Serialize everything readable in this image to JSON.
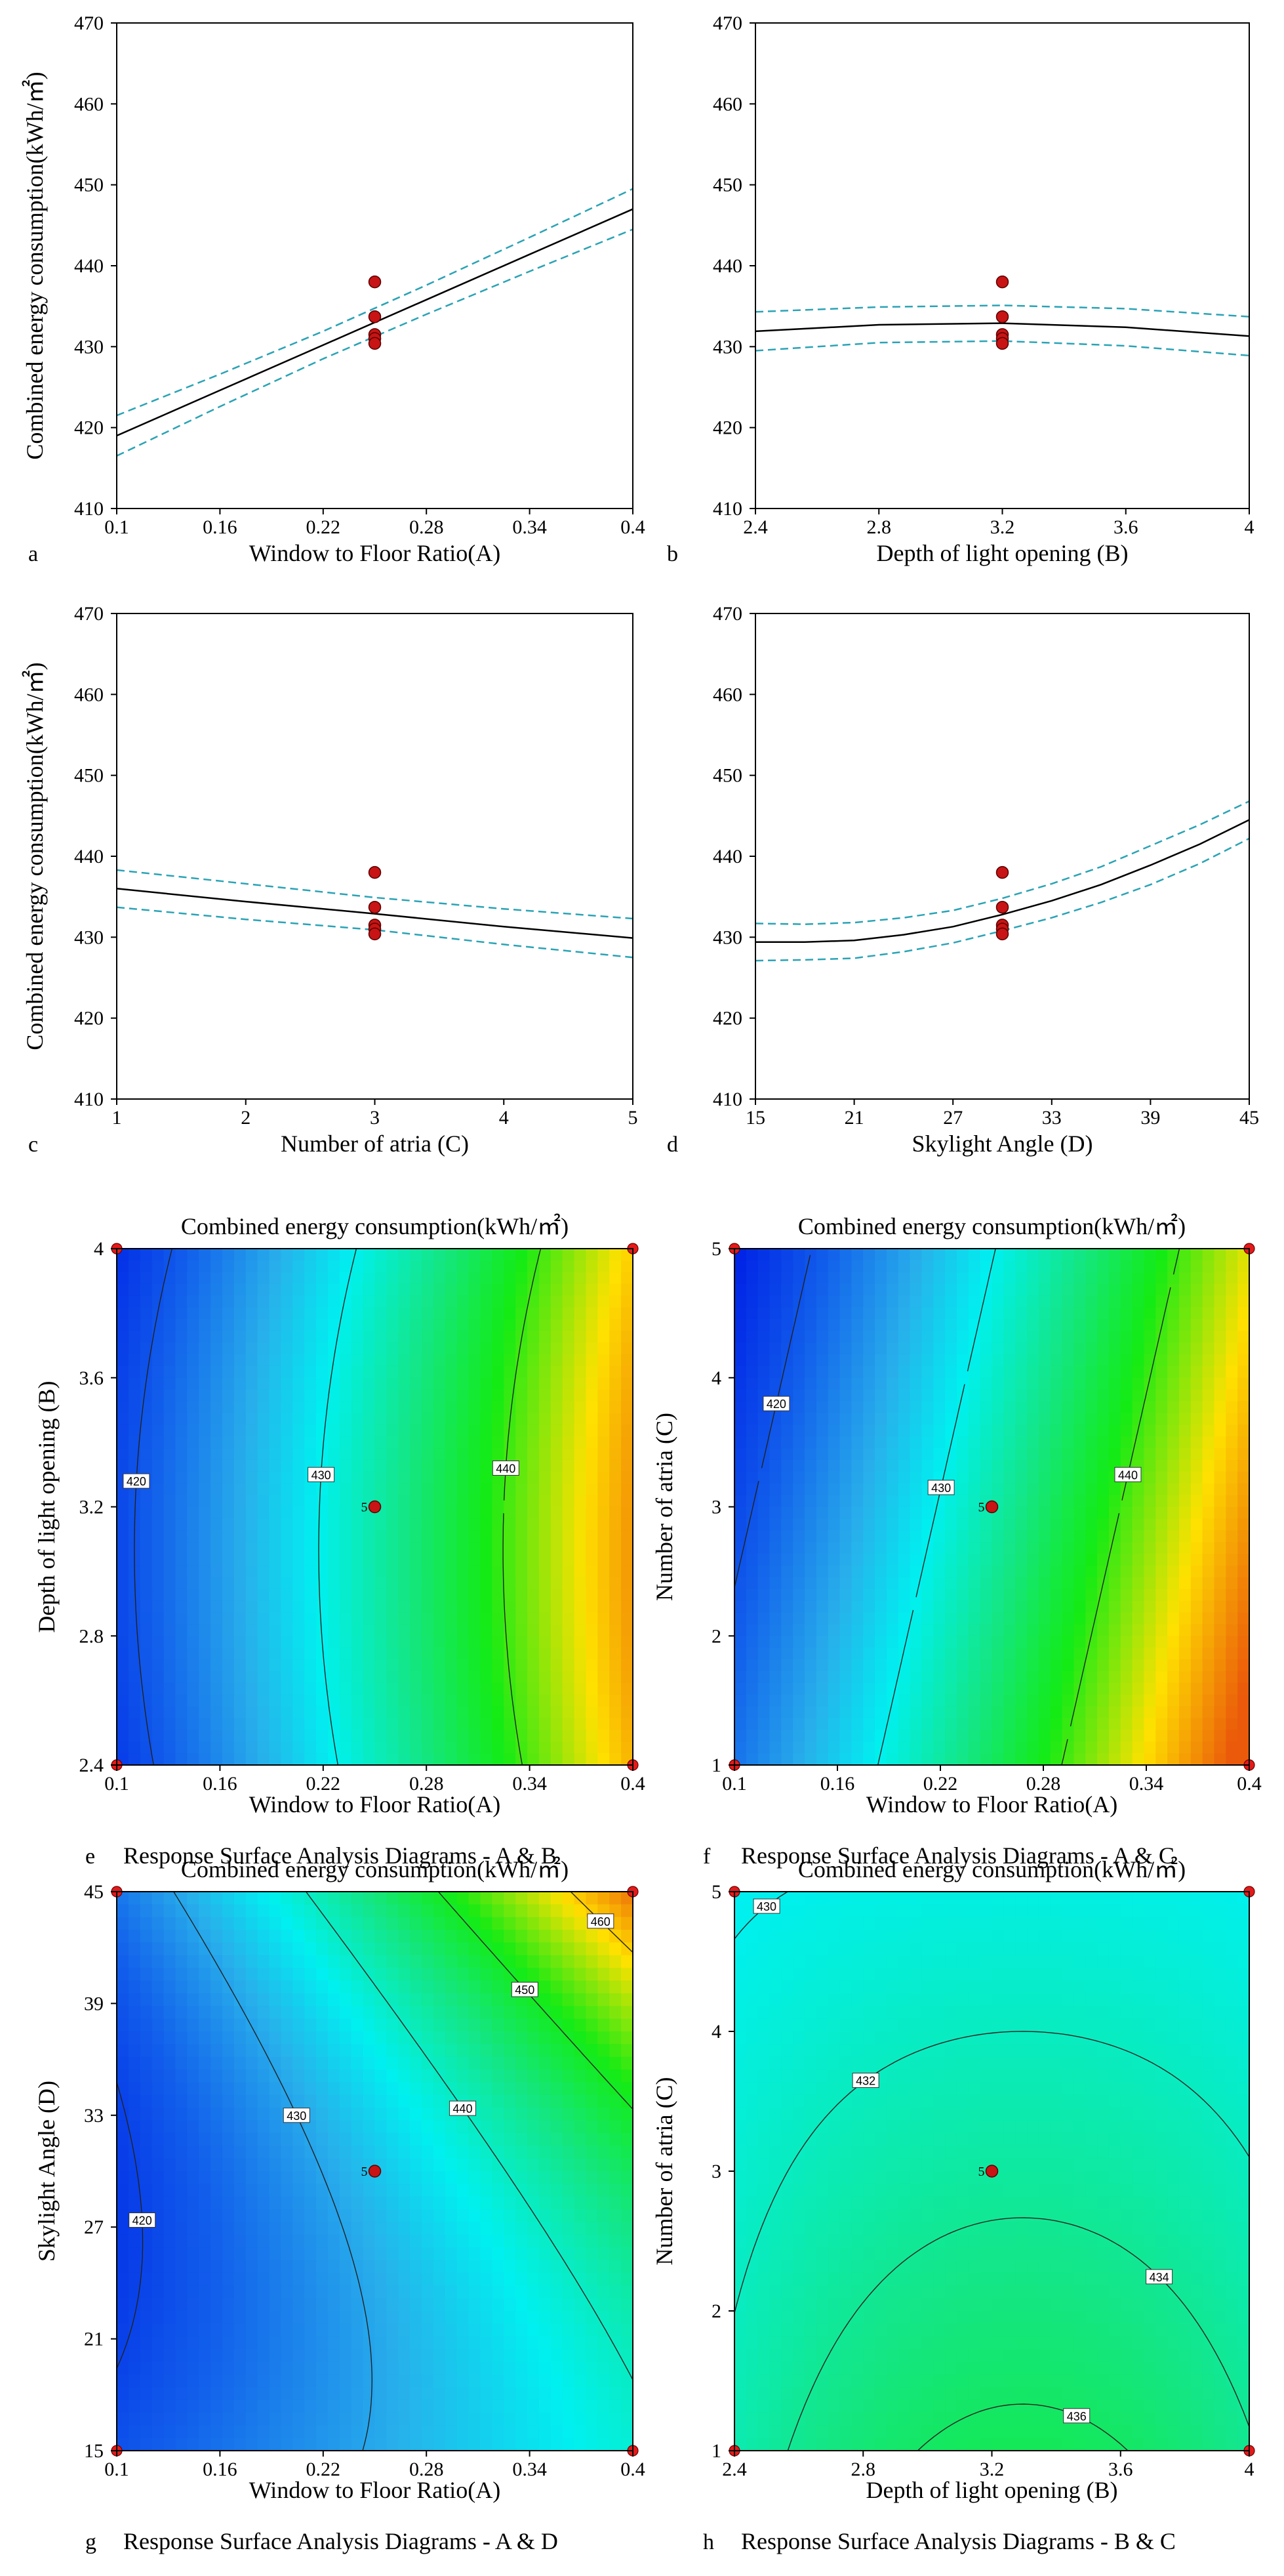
{
  "chart_data": [
    {
      "type": "line",
      "panel_letter": "a",
      "xlabel": "Window to Floor Ratio(A)",
      "ylabel": "Combined energy consumption(kWh/㎡)",
      "xlim": [
        0.1,
        0.4
      ],
      "ylim": [
        410,
        470
      ],
      "xticks": [
        "0.1",
        "0.16",
        "0.22",
        "0.28",
        "0.34",
        "0.4"
      ],
      "yticks": [
        "410",
        "420",
        "430",
        "440",
        "450",
        "460",
        "470"
      ],
      "series": [
        {
          "name": "prediction",
          "x": [
            0.1,
            0.16,
            0.22,
            0.28,
            0.34,
            0.4
          ],
          "y": [
            419,
            424.6,
            430.2,
            435.8,
            441.4,
            447
          ],
          "color": "#000000"
        },
        {
          "name": "upper CI",
          "x": [
            0.1,
            0.16,
            0.22,
            0.28,
            0.34,
            0.4
          ],
          "y": [
            421.5,
            426.6,
            431.9,
            437.6,
            443.5,
            449.5
          ],
          "color": "#2aa3b5"
        },
        {
          "name": "lower CI",
          "x": [
            0.1,
            0.16,
            0.22,
            0.28,
            0.34,
            0.4
          ],
          "y": [
            416.5,
            422.6,
            428.5,
            434,
            439.3,
            444.5
          ],
          "color": "#2aa3b5"
        }
      ],
      "points": {
        "x": [
          0.25,
          0.25,
          0.25,
          0.25,
          0.25
        ],
        "y": [
          438,
          433.7,
          431.5,
          431,
          430.4
        ]
      }
    },
    {
      "type": "line",
      "panel_letter": "b",
      "xlabel": "Depth of light opening (B)",
      "ylabel": "",
      "xlim": [
        2.4,
        4
      ],
      "ylim": [
        410,
        470
      ],
      "xticks": [
        "2.4",
        "2.8",
        "3.2",
        "3.6",
        "4"
      ],
      "yticks": [
        "410",
        "420",
        "430",
        "440",
        "450",
        "460",
        "470"
      ],
      "series": [
        {
          "name": "prediction",
          "x": [
            2.4,
            2.8,
            3.2,
            3.6,
            4
          ],
          "y": [
            431.9,
            432.7,
            432.9,
            432.4,
            431.3
          ],
          "color": "#000000"
        },
        {
          "name": "upper CI",
          "x": [
            2.4,
            2.8,
            3.2,
            3.6,
            4
          ],
          "y": [
            434.3,
            434.9,
            435.1,
            434.7,
            433.7
          ],
          "color": "#2aa3b5"
        },
        {
          "name": "lower CI",
          "x": [
            2.4,
            2.8,
            3.2,
            3.6,
            4
          ],
          "y": [
            429.5,
            430.5,
            430.7,
            430.1,
            428.9
          ],
          "color": "#2aa3b5"
        }
      ],
      "points": {
        "x": [
          3.2,
          3.2,
          3.2,
          3.2,
          3.2
        ],
        "y": [
          438,
          433.7,
          431.5,
          431,
          430.4
        ]
      }
    },
    {
      "type": "line",
      "panel_letter": "c",
      "xlabel": "Number of atria (C)",
      "ylabel": "Combined energy consumption(kWh/㎡)",
      "xlim": [
        1,
        5
      ],
      "ylim": [
        410,
        470
      ],
      "xticks": [
        "1",
        "2",
        "3",
        "4",
        "5"
      ],
      "yticks": [
        "410",
        "420",
        "430",
        "440",
        "450",
        "460",
        "470"
      ],
      "series": [
        {
          "name": "prediction",
          "x": [
            1,
            2,
            3,
            4,
            5
          ],
          "y": [
            436,
            434.4,
            432.9,
            431.3,
            429.9
          ],
          "color": "#000000"
        },
        {
          "name": "upper CI",
          "x": [
            1,
            2,
            3,
            4,
            5
          ],
          "y": [
            438.3,
            436.6,
            434.9,
            433.5,
            432.3
          ],
          "color": "#2aa3b5"
        },
        {
          "name": "lower CI",
          "x": [
            1,
            2,
            3,
            4,
            5
          ],
          "y": [
            433.7,
            432.2,
            430.9,
            429.1,
            427.5
          ],
          "color": "#2aa3b5"
        }
      ],
      "points": {
        "x": [
          3,
          3,
          3,
          3,
          3
        ],
        "y": [
          438,
          433.7,
          431.5,
          431,
          430.4
        ]
      }
    },
    {
      "type": "line",
      "panel_letter": "d",
      "xlabel": "Skylight Angle (D)",
      "ylabel": "",
      "xlim": [
        15,
        45
      ],
      "ylim": [
        410,
        470
      ],
      "xticks": [
        "15",
        "21",
        "27",
        "33",
        "39",
        "45"
      ],
      "yticks": [
        "410",
        "420",
        "430",
        "440",
        "450",
        "460",
        "470"
      ],
      "series": [
        {
          "name": "prediction",
          "x": [
            15,
            18,
            21,
            24,
            27,
            30,
            33,
            36,
            39,
            42,
            45
          ],
          "y": [
            429.4,
            429.4,
            429.6,
            430.3,
            431.3,
            432.8,
            434.5,
            436.5,
            438.9,
            441.5,
            444.5
          ],
          "color": "#000000"
        },
        {
          "name": "upper CI",
          "x": [
            15,
            18,
            21,
            24,
            27,
            30,
            33,
            36,
            39,
            42,
            45
          ],
          "y": [
            431.7,
            431.6,
            431.8,
            432.4,
            433.3,
            434.8,
            436.6,
            438.7,
            441.3,
            443.9,
            446.8
          ],
          "color": "#2aa3b5"
        },
        {
          "name": "lower CI",
          "x": [
            15,
            18,
            21,
            24,
            27,
            30,
            33,
            36,
            39,
            42,
            45
          ],
          "y": [
            427.1,
            427.2,
            427.4,
            428.2,
            429.3,
            430.8,
            432.4,
            434.3,
            436.5,
            439.1,
            442.2
          ],
          "color": "#2aa3b5"
        }
      ],
      "points": {
        "x": [
          30,
          30,
          30,
          30,
          30
        ],
        "y": [
          438,
          433.7,
          431.5,
          431,
          430.4
        ]
      }
    },
    {
      "type": "heatmap",
      "panel_letter": "e",
      "title": "Combined energy consumption(kWh/㎡)",
      "caption": "Response Surface Analysis Diagrams - A & B",
      "xlabel": "Window to Floor Ratio(A)",
      "ylabel": "Depth of light opening (B)",
      "xlim": [
        0.1,
        0.4
      ],
      "ylim": [
        2.4,
        4
      ],
      "xticks": [
        "0.1",
        "0.16",
        "0.22",
        "0.28",
        "0.34",
        "0.4"
      ],
      "yticks": [
        "2.4",
        "2.8",
        "3.2",
        "3.6",
        "4"
      ],
      "value_range": [
        416,
        449
      ],
      "contour_levels": [
        "420",
        "430",
        "440"
      ],
      "center_point": {
        "x": 0.25,
        "y": 3.2,
        "label": "5"
      },
      "design_points": [
        [
          0.1,
          2.4
        ],
        [
          0.4,
          2.4
        ],
        [
          0.1,
          4
        ],
        [
          0.4,
          4
        ]
      ]
    },
    {
      "type": "heatmap",
      "panel_letter": "f",
      "title": "Combined energy consumption(kWh/㎡)",
      "caption": "Response Surface Analysis Diagrams - A & C",
      "xlabel": "Window to Floor Ratio(A)",
      "ylabel": "Number of atria (C)",
      "xlim": [
        0.1,
        0.4
      ],
      "ylim": [
        1,
        5
      ],
      "xticks": [
        "0.1",
        "0.16",
        "0.22",
        "0.28",
        "0.34",
        "0.4"
      ],
      "yticks": [
        "1",
        "2",
        "3",
        "4",
        "5"
      ],
      "value_range": [
        416,
        449
      ],
      "contour_levels": [
        "420",
        "430",
        "440"
      ],
      "center_point": {
        "x": 0.25,
        "y": 3,
        "label": "5"
      },
      "design_points": [
        [
          0.1,
          1
        ],
        [
          0.4,
          1
        ],
        [
          0.1,
          5
        ],
        [
          0.4,
          5
        ]
      ]
    },
    {
      "type": "heatmap",
      "panel_letter": "g",
      "title": "Combined energy consumption(kWh/㎡)",
      "caption": "Response Surface Analysis Diagrams - A & D",
      "xlabel": "Window to Floor Ratio(A)",
      "ylabel": "Skylight Angle (D)",
      "xlim": [
        0.1,
        0.4
      ],
      "ylim": [
        15,
        45
      ],
      "xticks": [
        "0.1",
        "0.16",
        "0.22",
        "0.28",
        "0.34",
        "0.4"
      ],
      "yticks": [
        "15",
        "21",
        "27",
        "33",
        "39",
        "45"
      ],
      "value_range": [
        416,
        466
      ],
      "contour_levels": [
        "420",
        "430",
        "440",
        "450",
        "460"
      ],
      "center_point": {
        "x": 0.25,
        "y": 30,
        "label": "5"
      },
      "design_points": [
        [
          0.1,
          15
        ],
        [
          0.4,
          15
        ],
        [
          0.1,
          45
        ],
        [
          0.4,
          45
        ]
      ]
    },
    {
      "type": "heatmap",
      "panel_letter": "h",
      "title": "Combined energy consumption(kWh/㎡)",
      "caption": "Response Surface Analysis Diagrams - B & C",
      "xlabel": "Depth of light opening (B)",
      "ylabel": "Number of atria (C)",
      "xlim": [
        2.4,
        4
      ],
      "ylim": [
        1,
        5
      ],
      "xticks": [
        "2.4",
        "2.8",
        "3.2",
        "3.6",
        "4"
      ],
      "yticks": [
        "1",
        "2",
        "3",
        "4",
        "5"
      ],
      "value_range": [
        416,
        449
      ],
      "contour_levels": [
        "430",
        "432",
        "434",
        "436"
      ],
      "center_point": {
        "x": 3.2,
        "y": 3,
        "label": "5"
      },
      "design_points": [
        [
          2.4,
          1
        ],
        [
          4,
          1
        ],
        [
          2.4,
          5
        ],
        [
          4,
          5
        ]
      ]
    }
  ]
}
